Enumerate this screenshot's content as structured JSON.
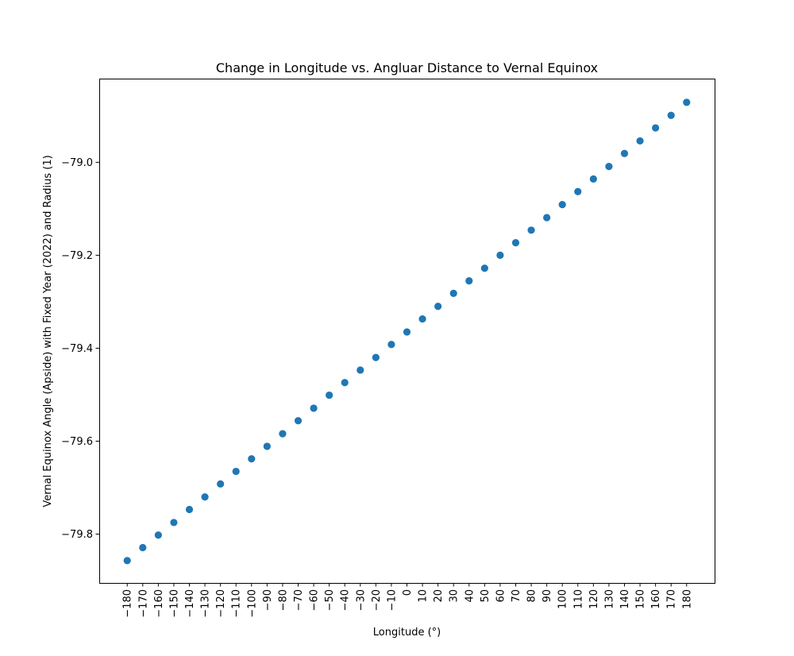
{
  "chart_data": {
    "type": "scatter",
    "title": "Change in Longitude vs. Angluar Distance to Vernal Equinox",
    "xlabel": "Longitude (°)",
    "ylabel": "Vernal Equinox Angle (Apside) with Fixed Year (2022) and Radius (1)",
    "x_ticks": [
      -180,
      -170,
      -160,
      -150,
      -140,
      -130,
      -120,
      -110,
      -100,
      -90,
      -80,
      -70,
      -60,
      -50,
      -40,
      -30,
      -20,
      -10,
      0,
      10,
      20,
      30,
      40,
      50,
      60,
      70,
      80,
      90,
      100,
      110,
      120,
      130,
      140,
      150,
      160,
      170,
      180
    ],
    "x_tick_labels": [
      "−180",
      "−170",
      "−160",
      "−150",
      "−140",
      "−130",
      "−120",
      "−110",
      "−100",
      "−90",
      "−80",
      "−70",
      "−60",
      "−50",
      "−40",
      "−30",
      "−20",
      "−10",
      "0",
      "10",
      "20",
      "30",
      "40",
      "50",
      "60",
      "70",
      "80",
      "90",
      "100",
      "110",
      "120",
      "130",
      "140",
      "150",
      "160",
      "170",
      "180"
    ],
    "y_ticks": [
      -79.8,
      -79.6,
      -79.4,
      -79.2,
      -79.0
    ],
    "y_tick_labels": [
      "−79.8",
      "−79.6",
      "−79.4",
      "−79.2",
      "−79.0"
    ],
    "xlim": [
      -198,
      198
    ],
    "ylim": [
      -79.905,
      -78.82
    ],
    "grid": false,
    "series": [
      {
        "color": "#1f77b4",
        "x": [
          -180,
          -170,
          -160,
          -150,
          -140,
          -130,
          -120,
          -110,
          -100,
          -90,
          -80,
          -70,
          -60,
          -50,
          -40,
          -30,
          -20,
          -10,
          0,
          10,
          20,
          30,
          40,
          50,
          60,
          70,
          80,
          90,
          100,
          110,
          120,
          130,
          140,
          150,
          160,
          170,
          180
        ],
        "y": [
          -79.857,
          -79.829,
          -79.802,
          -79.775,
          -79.747,
          -79.72,
          -79.692,
          -79.665,
          -79.638,
          -79.611,
          -79.584,
          -79.556,
          -79.529,
          -79.501,
          -79.474,
          -79.447,
          -79.42,
          -79.392,
          -79.365,
          -79.337,
          -79.31,
          -79.282,
          -79.255,
          -79.228,
          -79.2,
          -79.173,
          -79.146,
          -79.119,
          -79.091,
          -79.063,
          -79.036,
          -79.009,
          -78.981,
          -78.954,
          -78.926,
          -78.899,
          -78.871
        ]
      }
    ]
  }
}
